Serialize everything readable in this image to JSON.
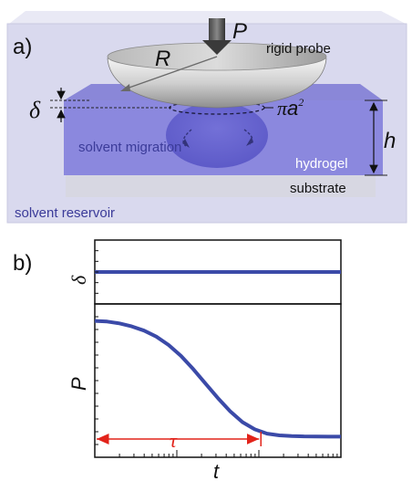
{
  "panel_a": {
    "label": "a)",
    "force_symbol": "P",
    "radius_symbol": "R",
    "probe_label": "rigid probe",
    "delta_symbol": "δ",
    "contact_label_pi": "π",
    "contact_label_a": "a",
    "contact_label_exp": "2",
    "migration_label": "solvent migration",
    "thickness_symbol": "h",
    "hydrogel_label": "hydrogel",
    "substrate_label": "substrate",
    "reservoir_label": "solvent reservoir"
  },
  "panel_b": {
    "label": "b)",
    "top_ylabel": "δ",
    "bottom_ylabel": "P",
    "xlabel": "t",
    "tau_label": "τ"
  },
  "colors": {
    "curve": "#3b4aa8",
    "tau_arrow": "#e2231a",
    "reservoir": "#dcdcf0",
    "hydrogel": "#8a87dc",
    "substrate": "#d9d9e6"
  },
  "chart_data": [
    {
      "type": "line",
      "panel": "top",
      "series": [
        {
          "x": [
            0,
            1
          ],
          "y": [
            0.5,
            0.5
          ]
        }
      ]
    },
    {
      "type": "line",
      "panel": "bottom",
      "series": [
        {
          "x": [
            0.0,
            0.05,
            0.1,
            0.15,
            0.2,
            0.25,
            0.3,
            0.35,
            0.4,
            0.45,
            0.5,
            0.55,
            0.6,
            0.65,
            0.7,
            0.75,
            0.8,
            0.85,
            0.9,
            0.95,
            1.0
          ],
          "y": [
            0.98,
            0.975,
            0.96,
            0.935,
            0.9,
            0.85,
            0.78,
            0.69,
            0.58,
            0.46,
            0.34,
            0.23,
            0.14,
            0.08,
            0.045,
            0.03,
            0.025,
            0.022,
            0.021,
            0.02,
            0.02
          ]
        }
      ],
      "tau_range": [
        0,
        0.675
      ]
    }
  ]
}
